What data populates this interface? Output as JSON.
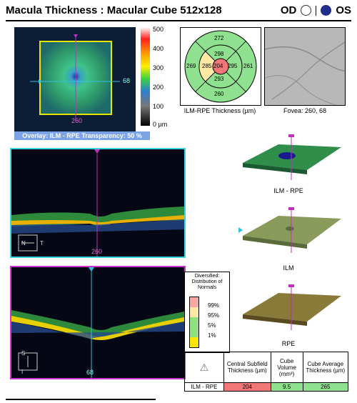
{
  "header": {
    "title": "Macula Thickness : Macular Cube 512x128",
    "od_label": "OD",
    "os_label": "OS"
  },
  "thumbnail": {
    "h_label": "68",
    "v_label": "260"
  },
  "colorbar": {
    "labels": [
      "500",
      "400",
      "300",
      "200",
      "100",
      "0 µm"
    ]
  },
  "overlay_bar": "Overlay: ILM - RPE  Transparency: 50 %",
  "etdrs": {
    "caption": "ILM-RPE Thickness (µm)",
    "center": "204",
    "inner": {
      "top": "298",
      "left": "285",
      "right": "295",
      "bottom": "293"
    },
    "outer": {
      "top": "272",
      "left": "269",
      "right": "261",
      "bottom": "260"
    }
  },
  "fundus": {
    "caption": "Fovea: 260, 68"
  },
  "bscans": {
    "top": {
      "v_label": "260",
      "n": "N",
      "t": "T"
    },
    "bottom": {
      "v_label": "68",
      "s": "S",
      "i": "I"
    }
  },
  "surfaces": [
    {
      "label": "ILM - RPE"
    },
    {
      "label": "ILM"
    },
    {
      "label": "RPE"
    }
  ],
  "legend": {
    "title": "Diversified: Distribution of Normals",
    "items": [
      {
        "label": "99%",
        "color": "#f7a6a6"
      },
      {
        "label": "95%",
        "color": "#fde9a3"
      },
      {
        "label": "5%",
        "color": "#90e083"
      },
      {
        "label": "1%",
        "color": "#ffe600"
      }
    ]
  },
  "table": {
    "headers": [
      "Central Subfield Thickness (µm)",
      "Cube Volume (mm³)",
      "Cube Average Thickness (µm)"
    ],
    "row_label": "ILM - RPE",
    "values": [
      "204",
      "9.5",
      "265"
    ],
    "colors": [
      "#f27878",
      "#8fe08f",
      "#8fe08f"
    ]
  }
}
